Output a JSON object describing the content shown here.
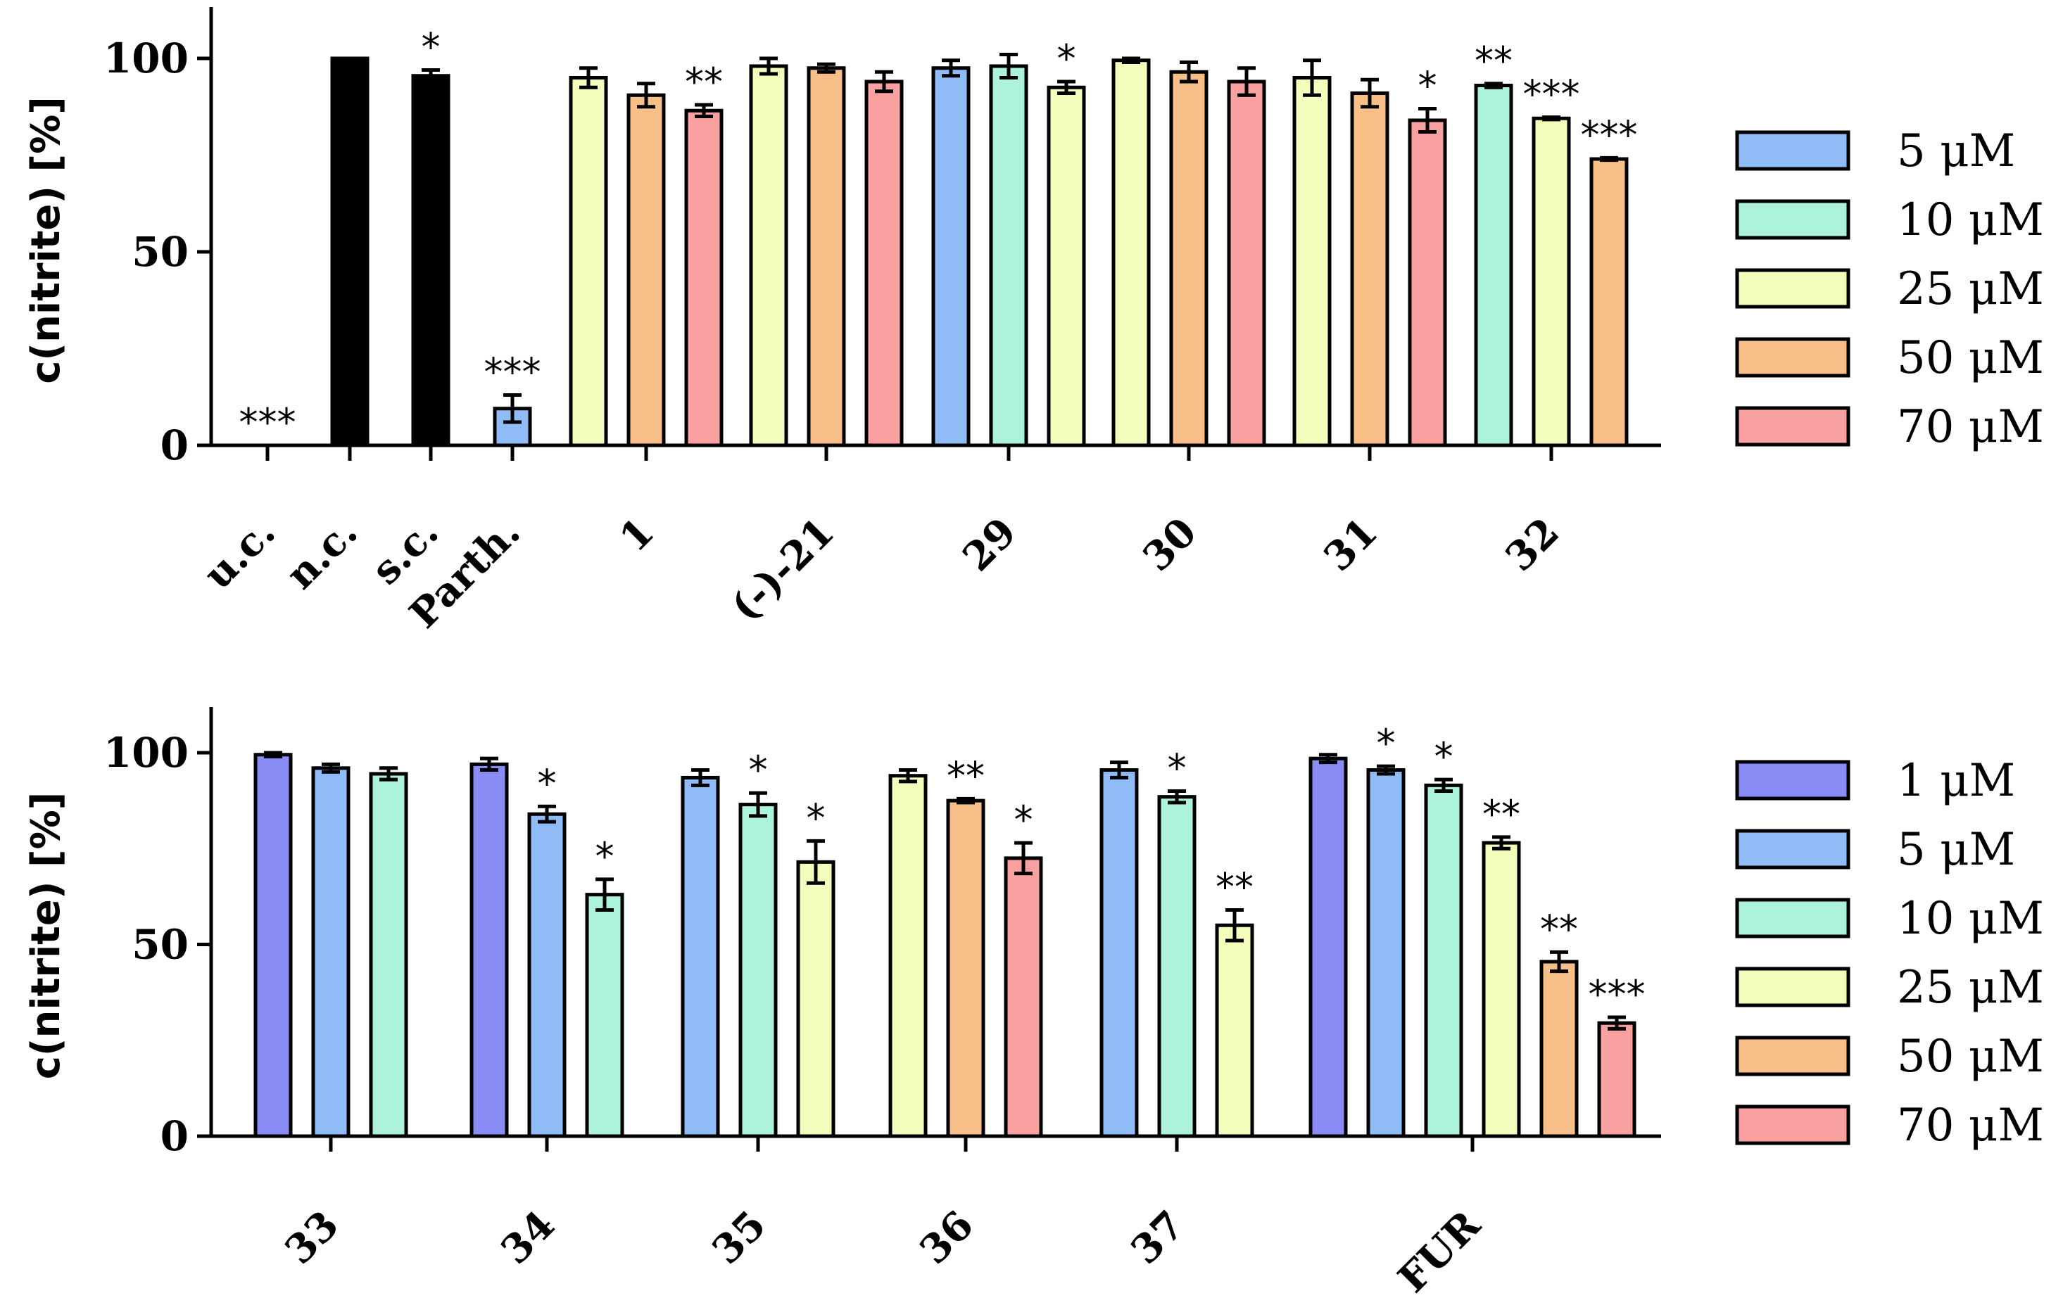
{
  "colors": {
    "1": "#8a8cf5",
    "5": "#8fbcf6",
    "10": "#adf3db",
    "25": "#f4fdbb",
    "50": "#f8c088",
    "70": "#f9a0a0",
    "control": "#000000"
  },
  "chart_data": [
    {
      "type": "bar",
      "title": "",
      "ylabel": "c(nitrite) [%]",
      "ylim": [
        0,
        112
      ],
      "yticks": [
        "0",
        "50",
        "100"
      ],
      "legend": [
        {
          "key": "5",
          "label": "5 μM"
        },
        {
          "key": "10",
          "label": "10 μM"
        },
        {
          "key": "25",
          "label": "25 μM"
        },
        {
          "key": "50",
          "label": "50 μM"
        },
        {
          "key": "70",
          "label": "70 μM"
        }
      ],
      "groups": [
        {
          "label": "u.c.",
          "bars": [
            {
              "key": "control",
              "value": 0,
              "err": 0,
              "sig": "***"
            }
          ]
        },
        {
          "label": "n.c.",
          "bars": [
            {
              "key": "control",
              "value": 100,
              "err": 0,
              "sig": ""
            }
          ]
        },
        {
          "label": "s.c.",
          "bars": [
            {
              "key": "control",
              "value": 95.5,
              "err": 1.5,
              "sig": "*"
            }
          ]
        },
        {
          "label": "Parth.",
          "bars": [
            {
              "key": "5",
              "value": 9.5,
              "err": 3.5,
              "sig": "***"
            }
          ]
        },
        {
          "label": "1",
          "bars": [
            {
              "key": "25",
              "value": 95,
              "err": 2.5,
              "sig": ""
            },
            {
              "key": "50",
              "value": 90.5,
              "err": 3,
              "sig": ""
            },
            {
              "key": "70",
              "value": 86.5,
              "err": 1.5,
              "sig": "**"
            }
          ]
        },
        {
          "label": "(-)-21",
          "bars": [
            {
              "key": "25",
              "value": 98,
              "err": 2,
              "sig": ""
            },
            {
              "key": "50",
              "value": 97.5,
              "err": 1,
              "sig": ""
            },
            {
              "key": "70",
              "value": 94,
              "err": 2.5,
              "sig": ""
            }
          ]
        },
        {
          "label": "29",
          "bars": [
            {
              "key": "5",
              "value": 97.5,
              "err": 2,
              "sig": ""
            },
            {
              "key": "10",
              "value": 98,
              "err": 3,
              "sig": ""
            },
            {
              "key": "25",
              "value": 92.5,
              "err": 1.5,
              "sig": "*"
            }
          ]
        },
        {
          "label": "30",
          "bars": [
            {
              "key": "25",
              "value": 99.5,
              "err": 0.5,
              "sig": ""
            },
            {
              "key": "50",
              "value": 96.5,
              "err": 2.5,
              "sig": ""
            },
            {
              "key": "70",
              "value": 94,
              "err": 3.5,
              "sig": ""
            }
          ]
        },
        {
          "label": "31",
          "bars": [
            {
              "key": "25",
              "value": 95,
              "err": 4.5,
              "sig": ""
            },
            {
              "key": "50",
              "value": 91,
              "err": 3.5,
              "sig": ""
            },
            {
              "key": "70",
              "value": 84,
              "err": 3,
              "sig": "*"
            }
          ]
        },
        {
          "label": "32",
          "bars": [
            {
              "key": "10",
              "value": 93,
              "err": 0.5,
              "sig": "**"
            },
            {
              "key": "25",
              "value": 84.5,
              "err": 0.3,
              "sig": "***"
            },
            {
              "key": "50",
              "value": 74,
              "err": 0.3,
              "sig": "***"
            }
          ]
        }
      ]
    },
    {
      "type": "bar",
      "title": "",
      "ylabel": "c(nitrite) [%]",
      "ylim": [
        0,
        112
      ],
      "yticks": [
        "0",
        "50",
        "100"
      ],
      "legend": [
        {
          "key": "1",
          "label": "1 μM"
        },
        {
          "key": "5",
          "label": "5 μM"
        },
        {
          "key": "10",
          "label": "10 μM"
        },
        {
          "key": "25",
          "label": "25 μM"
        },
        {
          "key": "50",
          "label": "50 μM"
        },
        {
          "key": "70",
          "label": "70 μM"
        }
      ],
      "groups": [
        {
          "label": "33",
          "bars": [
            {
              "key": "1",
              "value": 99.5,
              "err": 0.5,
              "sig": ""
            },
            {
              "key": "5",
              "value": 96,
              "err": 1,
              "sig": ""
            },
            {
              "key": "10",
              "value": 94.5,
              "err": 1.5,
              "sig": ""
            }
          ]
        },
        {
          "label": "34",
          "bars": [
            {
              "key": "1",
              "value": 97,
              "err": 1.5,
              "sig": ""
            },
            {
              "key": "5",
              "value": 84,
              "err": 2,
              "sig": "*"
            },
            {
              "key": "10",
              "value": 63,
              "err": 4,
              "sig": "*"
            }
          ]
        },
        {
          "label": "35",
          "bars": [
            {
              "key": "5",
              "value": 93.5,
              "err": 2,
              "sig": ""
            },
            {
              "key": "10",
              "value": 86.5,
              "err": 3,
              "sig": "*"
            },
            {
              "key": "25",
              "value": 71.5,
              "err": 5.5,
              "sig": "*"
            }
          ]
        },
        {
          "label": "36",
          "bars": [
            {
              "key": "25",
              "value": 94,
              "err": 1.5,
              "sig": ""
            },
            {
              "key": "50",
              "value": 87.5,
              "err": 0.5,
              "sig": "**"
            },
            {
              "key": "70",
              "value": 72.5,
              "err": 4,
              "sig": "*"
            }
          ]
        },
        {
          "label": "37",
          "bars": [
            {
              "key": "5",
              "value": 95.5,
              "err": 2,
              "sig": ""
            },
            {
              "key": "10",
              "value": 88.5,
              "err": 1.5,
              "sig": "*"
            },
            {
              "key": "25",
              "value": 55,
              "err": 4,
              "sig": "**"
            }
          ]
        },
        {
          "label": "FUR",
          "bars": [
            {
              "key": "1",
              "value": 98.5,
              "err": 1,
              "sig": ""
            },
            {
              "key": "5",
              "value": 95.5,
              "err": 1,
              "sig": "*"
            },
            {
              "key": "10",
              "value": 91.5,
              "err": 1.5,
              "sig": "*"
            },
            {
              "key": "25",
              "value": 76.5,
              "err": 1.5,
              "sig": "**"
            },
            {
              "key": "50",
              "value": 45.5,
              "err": 2.5,
              "sig": "**"
            },
            {
              "key": "70",
              "value": 29.5,
              "err": 1.5,
              "sig": "***"
            }
          ]
        }
      ]
    }
  ]
}
